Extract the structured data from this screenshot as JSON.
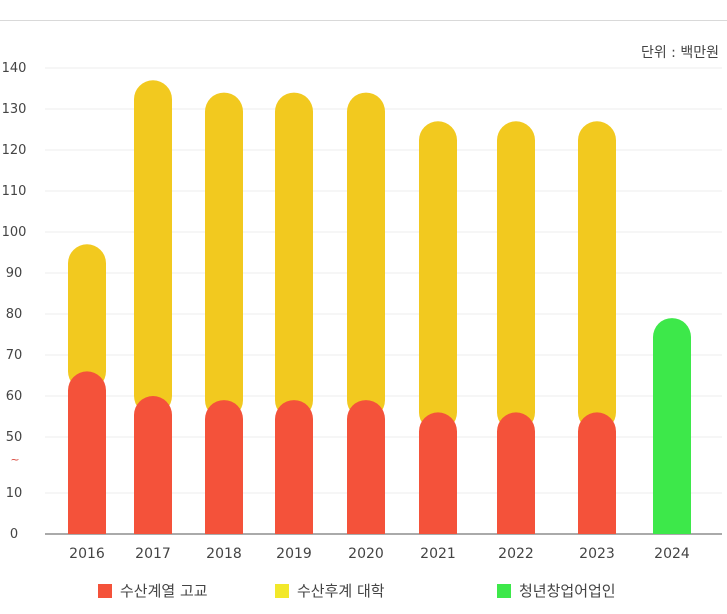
{
  "unit_label": "단위 : 백만원",
  "chart_data": {
    "type": "bar",
    "stacked": true,
    "categories": [
      "2016",
      "2017",
      "2018",
      "2019",
      "2020",
      "2021",
      "2022",
      "2023",
      "2024"
    ],
    "series": [
      {
        "name": "수산계열 고교",
        "color": "#f4523a",
        "values": [
          66,
          60,
          59,
          59,
          59,
          56,
          56,
          56,
          0
        ]
      },
      {
        "name": "수산후계 대학",
        "color": "#f2c91f",
        "values": [
          31,
          77,
          75,
          75,
          75,
          71,
          71,
          71,
          0
        ]
      },
      {
        "name": "청년창업어업인",
        "color": "#3de84a",
        "values": [
          0,
          0,
          0,
          0,
          0,
          0,
          0,
          0,
          79
        ]
      }
    ],
    "yticks": [
      "0",
      "10",
      "~",
      "50",
      "60",
      "70",
      "80",
      "90",
      "100",
      "110",
      "120",
      "130",
      "140"
    ],
    "ylim": [
      0,
      140
    ],
    "axis_break": {
      "from": 10,
      "to": 50
    },
    "grid": true,
    "legend_position": "bottom"
  },
  "legend": [
    {
      "label": "수산계열 고교",
      "color": "#f4523a"
    },
    {
      "label": "수산후계 대학",
      "color": "#f2e82a"
    },
    {
      "label": "청년창업어업인",
      "color": "#3de84a"
    }
  ]
}
